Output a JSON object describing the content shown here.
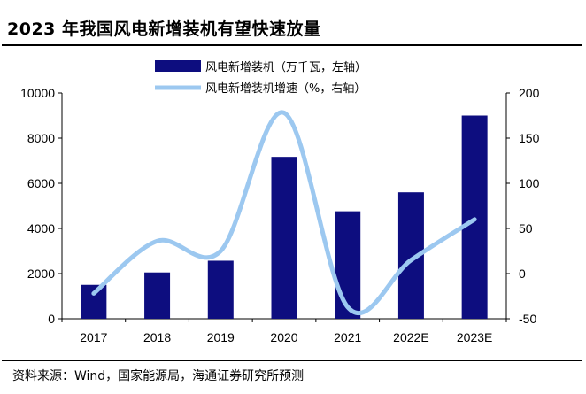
{
  "title": "2023 年我国风电新增装机有望快速放量",
  "source": "资料来源：Wind，国家能源局，海通证券研究所预测",
  "chart_data": {
    "type": "bar+line",
    "title": "2023 年我国风电新增装机有望快速放量",
    "categories": [
      "2017",
      "2018",
      "2019",
      "2020",
      "2021",
      "2022E",
      "2023E"
    ],
    "series": [
      {
        "name": "风电新增装机（万千瓦，左轴）",
        "type": "bar",
        "axis": "left",
        "color": "#0d0d7f",
        "values": [
          1500,
          2050,
          2570,
          7170,
          4760,
          5600,
          9000
        ]
      },
      {
        "name": "风电新增装机增速（%，右轴）",
        "type": "line",
        "axis": "right",
        "color": "#9cc8f0",
        "values": [
          -22,
          36,
          25,
          178,
          -37,
          15,
          60
        ]
      }
    ],
    "left_axis": {
      "min": 0,
      "max": 10000,
      "ticks": [
        0,
        2000,
        4000,
        6000,
        8000,
        10000
      ]
    },
    "right_axis": {
      "min": -50,
      "max": 200,
      "ticks": [
        -50,
        0,
        50,
        100,
        150,
        200
      ]
    },
    "legend_position": "top-center"
  }
}
